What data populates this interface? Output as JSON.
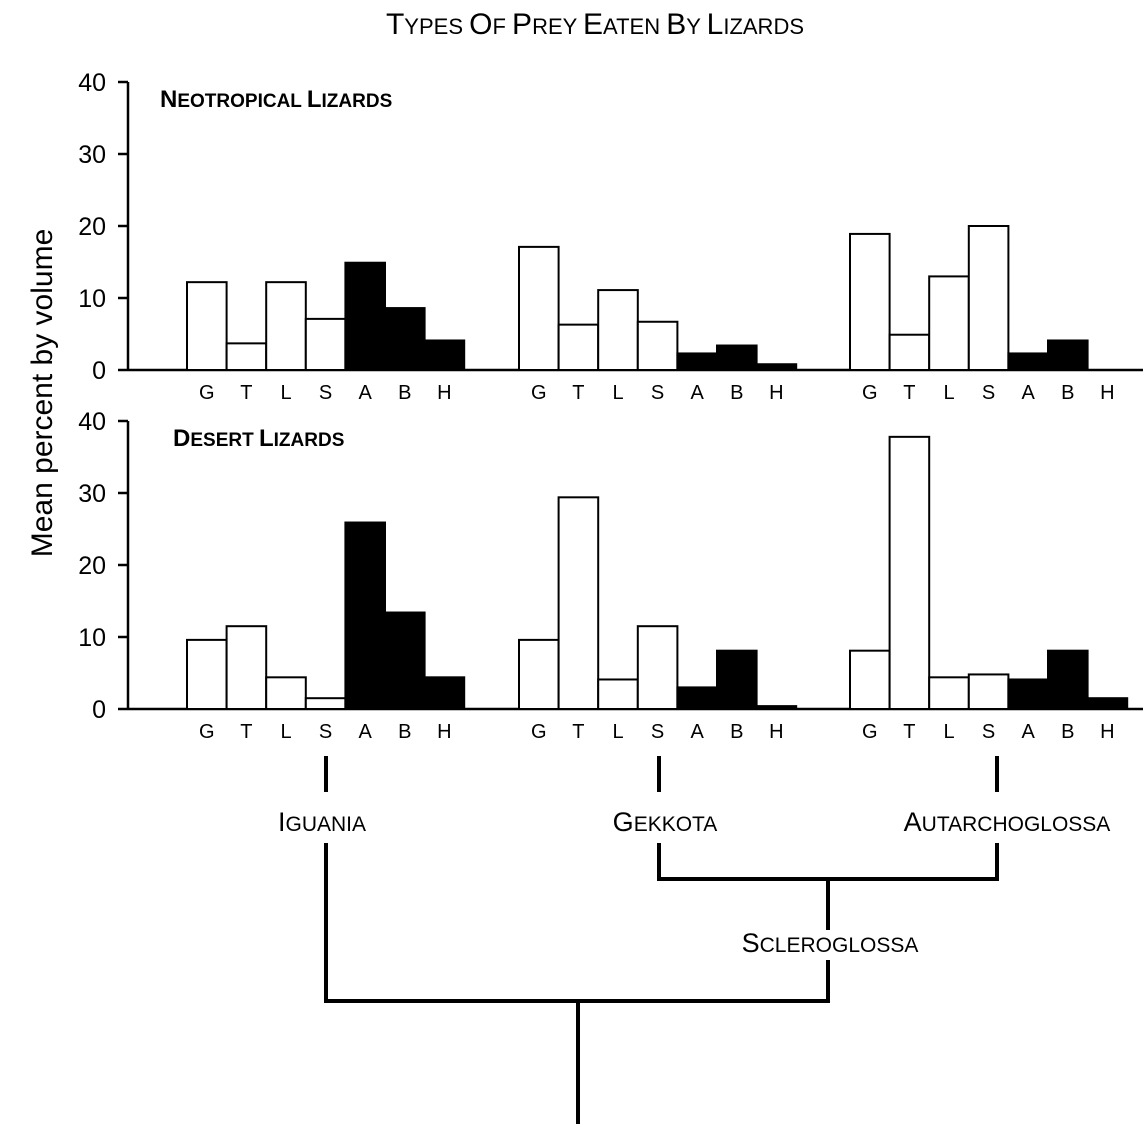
{
  "title": "Types of Prey Eaten by Lizards",
  "ylabel": "Mean percent by volume",
  "categories": [
    "G",
    "T",
    "L",
    "S",
    "A",
    "B",
    "H"
  ],
  "colors": {
    "open_bar": "#ffffff",
    "filled_bar": "#000000",
    "line": "#000000"
  },
  "chart_data": [
    {
      "type": "bar",
      "panel_label": "Neotropical Lizards",
      "ylim": [
        0,
        40
      ],
      "yticks": [
        0,
        10,
        20,
        30,
        40
      ],
      "categories": [
        "G",
        "T",
        "L",
        "S",
        "A",
        "B",
        "H"
      ],
      "filled_categories": [
        "A",
        "B",
        "H"
      ],
      "groups": [
        {
          "clade": "Iguania",
          "values": [
            12.2,
            3.7,
            12.2,
            7.1,
            14.9,
            8.6,
            4.1
          ]
        },
        {
          "clade": "Gekkota",
          "values": [
            17.1,
            6.3,
            11.1,
            6.7,
            2.3,
            3.4,
            0.8
          ]
        },
        {
          "clade": "Autarchoglossa",
          "values": [
            18.9,
            4.9,
            13.0,
            20.0,
            2.3,
            4.1,
            0
          ]
        }
      ]
    },
    {
      "type": "bar",
      "panel_label": "Desert Lizards",
      "ylim": [
        0,
        40
      ],
      "yticks": [
        0,
        10,
        20,
        30,
        40
      ],
      "categories": [
        "G",
        "T",
        "L",
        "S",
        "A",
        "B",
        "H"
      ],
      "filled_categories": [
        "A",
        "B",
        "H"
      ],
      "groups": [
        {
          "clade": "Iguania",
          "values": [
            9.6,
            11.5,
            4.4,
            1.5,
            25.9,
            13.4,
            4.4
          ]
        },
        {
          "clade": "Gekkota",
          "values": [
            9.6,
            29.4,
            4.1,
            11.5,
            3.0,
            8.1,
            0.4
          ]
        },
        {
          "clade": "Autarchoglossa",
          "values": [
            8.1,
            37.8,
            4.4,
            4.8,
            4.1,
            8.1,
            1.5
          ]
        }
      ]
    }
  ],
  "tree": {
    "tips": [
      "Iguania",
      "Gekkota",
      "Autarchoglossa"
    ],
    "internal_node": "Scleroglossa"
  }
}
